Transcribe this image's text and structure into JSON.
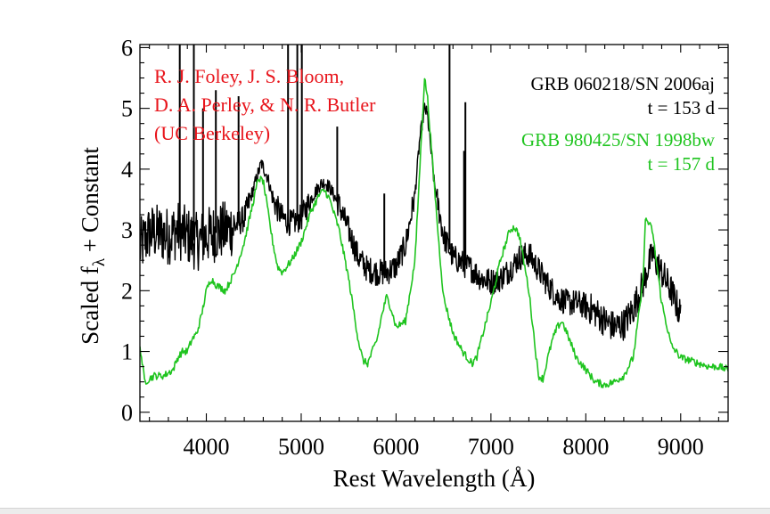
{
  "chart_data": {
    "type": "line",
    "xlabel": "Rest Wavelength (Å)",
    "ylabel_main": "Scaled f",
    "ylabel_sub": "λ",
    "ylabel_tail": " + Constant",
    "xlim": [
      3300,
      9500
    ],
    "ylim": [
      -0.15,
      6.05
    ],
    "x_ticks": [
      4000,
      5000,
      6000,
      7000,
      8000,
      9000
    ],
    "x_tick_labels": [
      "4000",
      "5000",
      "6000",
      "7000",
      "8000",
      "9000"
    ],
    "y_ticks": [
      0,
      1,
      2,
      3,
      4,
      5,
      6
    ],
    "y_tick_labels": [
      "0",
      "1",
      "2",
      "3",
      "4",
      "5",
      "6"
    ],
    "x_minor_step": 200,
    "y_minor_step": 0.25,
    "credit_lines": [
      "R. J. Foley, J. S. Bloom,",
      "D. A. Perley, & N. R. Butler",
      "(UC Berkeley)"
    ],
    "credit_color": "#e8141b",
    "series": [
      {
        "name": "GRB 060218/SN 2006aj",
        "label_line2": "t = 153 d",
        "color": "#000000",
        "noise": 0.22,
        "x": [
          3300,
          3400,
          3500,
          3600,
          3700,
          3800,
          3900,
          4000,
          4100,
          4200,
          4300,
          4400,
          4500,
          4580,
          4650,
          4700,
          4800,
          4900,
          5000,
          5100,
          5200,
          5250,
          5300,
          5400,
          5500,
          5600,
          5700,
          5800,
          5900,
          6000,
          6100,
          6200,
          6250,
          6300,
          6330,
          6400,
          6500,
          6600,
          6700,
          6800,
          6900,
          7000,
          7100,
          7200,
          7300,
          7400,
          7500,
          7600,
          7700,
          7800,
          7900,
          8000,
          8100,
          8200,
          8300,
          8400,
          8500,
          8600,
          8700,
          8800,
          8900,
          9000
        ],
        "y": [
          2.7,
          2.95,
          2.95,
          2.9,
          3.0,
          2.9,
          2.8,
          2.9,
          2.95,
          3.0,
          3.05,
          3.2,
          3.7,
          4.1,
          3.85,
          3.5,
          3.2,
          3.1,
          3.2,
          3.5,
          3.75,
          3.78,
          3.7,
          3.4,
          3.0,
          2.55,
          2.35,
          2.3,
          2.3,
          2.4,
          2.75,
          3.6,
          4.5,
          5.0,
          4.9,
          3.8,
          2.9,
          2.55,
          2.45,
          2.35,
          2.2,
          2.15,
          2.2,
          2.35,
          2.55,
          2.6,
          2.35,
          2.1,
          1.9,
          1.8,
          1.8,
          1.75,
          1.65,
          1.5,
          1.4,
          1.45,
          1.7,
          2.1,
          2.6,
          2.3,
          2.0,
          1.6
        ],
        "spikes": [
          {
            "x": 3720,
            "y": 6.05
          },
          {
            "x": 3868,
            "y": 6.05
          },
          {
            "x": 3965,
            "y": 5.0
          },
          {
            "x": 4100,
            "y": 5.3
          },
          {
            "x": 4340,
            "y": 5.2
          },
          {
            "x": 4861,
            "y": 6.05
          },
          {
            "x": 4959,
            "y": 6.05
          },
          {
            "x": 5007,
            "y": 6.05
          },
          {
            "x": 5380,
            "y": 4.7
          },
          {
            "x": 5876,
            "y": 3.6
          },
          {
            "x": 6563,
            "y": 6.05
          },
          {
            "x": 6731,
            "y": 5.1
          },
          {
            "x": 6717,
            "y": 4.3
          }
        ]
      },
      {
        "name": "GRB 980425/SN 1998bw",
        "label_line2": "t = 157 d",
        "color": "#1fc41f",
        "noise": 0.06,
        "x": [
          3300,
          3350,
          3450,
          3550,
          3650,
          3700,
          3750,
          3800,
          3850,
          3900,
          3950,
          4000,
          4050,
          4100,
          4200,
          4300,
          4400,
          4500,
          4550,
          4600,
          4650,
          4700,
          4750,
          4800,
          4900,
          5000,
          5100,
          5200,
          5250,
          5300,
          5400,
          5500,
          5600,
          5650,
          5700,
          5800,
          5850,
          5900,
          5950,
          6000,
          6100,
          6200,
          6250,
          6300,
          6330,
          6380,
          6450,
          6500,
          6600,
          6700,
          6800,
          6850,
          6900,
          7000,
          7100,
          7200,
          7250,
          7300,
          7400,
          7450,
          7500,
          7550,
          7600,
          7650,
          7700,
          7750,
          7800,
          7850,
          7900,
          8000,
          8100,
          8200,
          8300,
          8400,
          8500,
          8600,
          8630,
          8700,
          8800,
          8900,
          9000,
          9100,
          9200,
          9300,
          9400,
          9500
        ],
        "y": [
          1.1,
          0.5,
          0.6,
          0.6,
          0.7,
          0.9,
          1.0,
          1.0,
          1.2,
          1.3,
          1.6,
          2.0,
          2.2,
          2.1,
          2.0,
          2.3,
          2.8,
          3.5,
          3.85,
          3.8,
          3.3,
          2.8,
          2.4,
          2.3,
          2.5,
          2.8,
          3.3,
          3.6,
          3.65,
          3.5,
          3.0,
          2.2,
          1.2,
          0.85,
          0.8,
          1.2,
          1.6,
          1.9,
          1.7,
          1.4,
          1.5,
          2.5,
          4.0,
          5.5,
          5.2,
          4.2,
          2.8,
          1.9,
          1.3,
          1.0,
          0.8,
          0.9,
          1.2,
          1.8,
          2.5,
          3.0,
          3.05,
          2.9,
          2.0,
          1.3,
          0.6,
          0.55,
          0.9,
          1.2,
          1.4,
          1.5,
          1.3,
          1.1,
          0.9,
          0.7,
          0.5,
          0.45,
          0.5,
          0.6,
          0.9,
          2.1,
          3.2,
          3.0,
          1.8,
          1.1,
          0.9,
          0.85,
          0.8,
          0.75,
          0.75,
          0.7
        ]
      }
    ]
  }
}
